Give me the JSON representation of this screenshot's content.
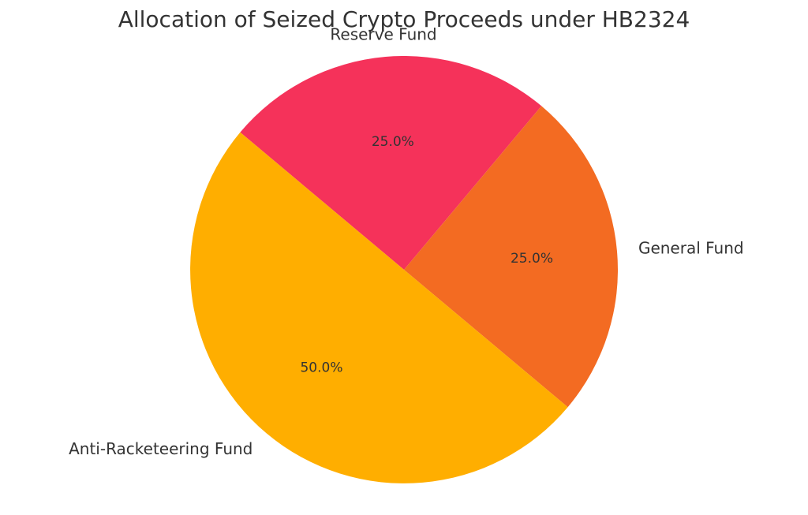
{
  "chart_data": {
    "type": "pie",
    "title": "Allocation of Seized Crypto Proceeds under HB2324",
    "slices": [
      {
        "label": "Reserve Fund",
        "value": 25.0,
        "pct_label": "25.0%",
        "color": "#f5325a"
      },
      {
        "label": "General Fund",
        "value": 25.0,
        "pct_label": "25.0%",
        "color": "#f36b22"
      },
      {
        "label": "Anti-Racketeering Fund",
        "value": 50.0,
        "pct_label": "50.0%",
        "color": "#ffae00"
      }
    ],
    "start_angle_deg": 140,
    "direction": "clockwise",
    "legend": "none"
  }
}
